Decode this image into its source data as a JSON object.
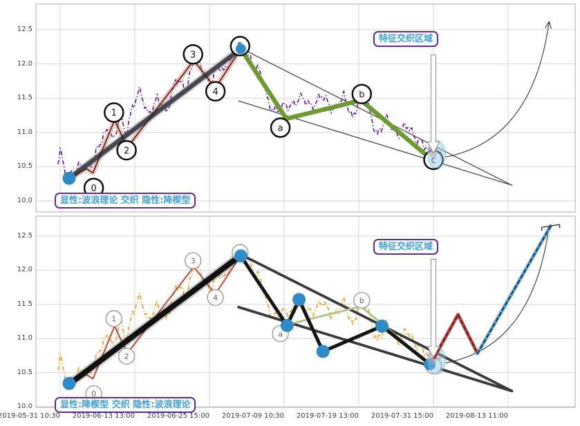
{
  "figure": {
    "background": "#ffffff",
    "description_labels": {
      "top_corner": "显性:波浪理论 交织 隐性:降楔型",
      "bottom_corner": "显性:降楔型 交织 隐性:波浪理论",
      "region": "特征交织区域"
    }
  },
  "chart_data": {
    "type": "line",
    "title": "",
    "xlabel": "",
    "ylabel": "",
    "grid": true,
    "x_tick_labels": [
      "2019-05-31 10:30",
      "2019-06-13 13:00",
      "2019-06-25 15:00",
      "2019-07-09 10:30",
      "2019-07-19 13:00",
      "2019-07-31 15:00",
      "2019-08-13 11:00"
    ],
    "y_tick_labels": [
      "12.5",
      "12.0",
      "11.5",
      "11.0",
      "10.5",
      "10.0"
    ],
    "y_tick_values": [
      12.5,
      12.0,
      11.5,
      11.0,
      10.5,
      10.0
    ],
    "ylim_top_panel": [
      9.84,
      12.87
    ],
    "ylim_bottom_panel": [
      9.99,
      12.79
    ],
    "colors": {
      "grid": "#d6d6d6",
      "spine": "#b8b8b8",
      "tick_text": "#3c3c3c",
      "price_top": "#5c1499",
      "price_bottom": "#e8a225",
      "wave_top": "#191919",
      "wave_glow_top": "rgba(244,138,112,0.55)",
      "wave_bottom": "#8a3030",
      "wave_glow_bottom": "rgba(240,150,125,0.3)",
      "trend_top": "#47474f",
      "trend_bottom": "#111111",
      "abc_top": "#6e9b32",
      "abc_bottom": "#b3c687",
      "wedge_top": "#555555",
      "wedge_bottom": "#3a3a3e",
      "marker_dot": "#2e8bc8",
      "red_leg": "#b24c4c",
      "red_leg_dash": "#6b1212",
      "blue_leg": "#58a7d6",
      "blue_leg_dash": "#1a1a1a",
      "label_text": "#3f9fd9",
      "label_border": "#5b2a9d",
      "ellipse_blue": "rgba(140,195,230,0.45)",
      "ellipse_salmon": "rgba(240,130,110,0.5)"
    },
    "price_anchors": [
      [
        -0.03,
        10.55
      ],
      [
        0.0,
        10.72
      ],
      [
        0.05,
        10.48
      ],
      [
        0.1,
        10.35
      ],
      [
        0.2,
        10.44
      ],
      [
        0.33,
        10.52
      ],
      [
        0.45,
        10.6
      ],
      [
        0.55,
        10.85
      ],
      [
        0.65,
        11.1
      ],
      [
        0.72,
        10.88
      ],
      [
        0.8,
        11.22
      ],
      [
        0.88,
        10.98
      ],
      [
        0.97,
        11.4
      ],
      [
        1.07,
        11.58
      ],
      [
        1.17,
        11.28
      ],
      [
        1.3,
        11.48
      ],
      [
        1.42,
        11.3
      ],
      [
        1.55,
        11.78
      ],
      [
        1.68,
        11.6
      ],
      [
        1.8,
        12.12
      ],
      [
        1.9,
        11.88
      ],
      [
        2.0,
        11.72
      ],
      [
        2.1,
        11.98
      ],
      [
        2.2,
        11.85
      ],
      [
        2.32,
        12.22
      ],
      [
        2.43,
        12.32
      ],
      [
        2.55,
        12.08
      ],
      [
        2.67,
        11.88
      ],
      [
        2.78,
        11.45
      ],
      [
        2.9,
        11.32
      ],
      [
        3.05,
        11.38
      ],
      [
        3.2,
        11.5
      ],
      [
        3.35,
        11.4
      ],
      [
        3.5,
        11.52
      ],
      [
        3.65,
        11.35
      ],
      [
        3.8,
        11.5
      ],
      [
        3.92,
        11.22
      ],
      [
        4.02,
        11.58
      ],
      [
        4.12,
        11.38
      ],
      [
        4.25,
        10.98
      ],
      [
        4.38,
        11.18
      ],
      [
        4.52,
        10.98
      ],
      [
        4.65,
        11.08
      ],
      [
        4.8,
        10.9
      ],
      [
        4.95,
        10.68
      ],
      [
        5.1,
        10.72
      ]
    ],
    "impulse_wave": [
      [
        0.12,
        10.33
      ],
      [
        0.35,
        10.47
      ],
      [
        0.44,
        10.41
      ],
      [
        0.73,
        11.18
      ],
      [
        0.9,
        10.78
      ],
      [
        1.79,
        12.05
      ],
      [
        2.08,
        11.65
      ],
      [
        2.42,
        12.22
      ]
    ],
    "trend_line": [
      [
        0.12,
        10.33
      ],
      [
        2.42,
        12.22
      ]
    ],
    "abc_wave": [
      [
        2.42,
        12.22
      ],
      [
        3.03,
        11.2
      ],
      [
        4.03,
        11.47
      ],
      [
        4.98,
        10.6
      ]
    ],
    "wedge_wave": [
      [
        2.42,
        12.21
      ],
      [
        3.04,
        11.19
      ],
      [
        3.2,
        11.57
      ],
      [
        3.52,
        10.81
      ],
      [
        4.31,
        11.18
      ],
      [
        4.98,
        10.6
      ]
    ],
    "wedge_upper": [
      [
        2.42,
        12.23
      ],
      [
        6.05,
        10.23
      ]
    ],
    "wedge_lower": [
      [
        2.39,
        11.46
      ],
      [
        6.05,
        10.23
      ]
    ],
    "red_leg": [
      [
        5.01,
        10.72
      ],
      [
        5.33,
        11.35
      ],
      [
        5.59,
        10.78
      ]
    ],
    "blue_leg": [
      [
        5.59,
        10.78
      ],
      [
        6.57,
        12.65
      ]
    ],
    "wave_labels": [
      {
        "text": "0",
        "t": 0.45,
        "v": 10.19
      },
      {
        "text": "1",
        "t": 0.72,
        "v": 11.29
      },
      {
        "text": "2",
        "t": 0.89,
        "v": 10.74
      },
      {
        "text": "3",
        "t": 1.78,
        "v": 12.14
      },
      {
        "text": "4",
        "t": 2.08,
        "v": 11.6
      },
      {
        "text": "5",
        "t": 2.41,
        "v": 12.26
      }
    ],
    "abc_labels": [
      {
        "text": "a",
        "t": 2.95,
        "v": 11.07
      },
      {
        "text": "b",
        "t": 4.04,
        "v": 11.56
      },
      {
        "text": "c",
        "t": 5.0,
        "v": 10.6
      }
    ],
    "dots_top_panel": [
      [
        0.12,
        10.33
      ],
      [
        2.42,
        12.22
      ]
    ],
    "dots_bottom_panel": [
      [
        0.12,
        10.34
      ],
      [
        2.42,
        12.21
      ],
      [
        3.04,
        11.19
      ],
      [
        3.2,
        11.57
      ],
      [
        3.52,
        10.81
      ],
      [
        4.31,
        11.18
      ],
      [
        4.95,
        10.62
      ]
    ],
    "highlight_ellipse": {
      "t": 5.04,
      "v": 10.68
    },
    "breakout_arrow_t": 5.0,
    "panels": [
      {
        "name": "wave-explicit",
        "corner_label": "显性:波浪理论 交织 隐性:降楔型",
        "region_label": "特征交织区域"
      },
      {
        "name": "wedge-explicit",
        "corner_label": "显性:降楔型 交织 隐性:波浪理论",
        "region_label": "特征交织区域"
      }
    ]
  }
}
